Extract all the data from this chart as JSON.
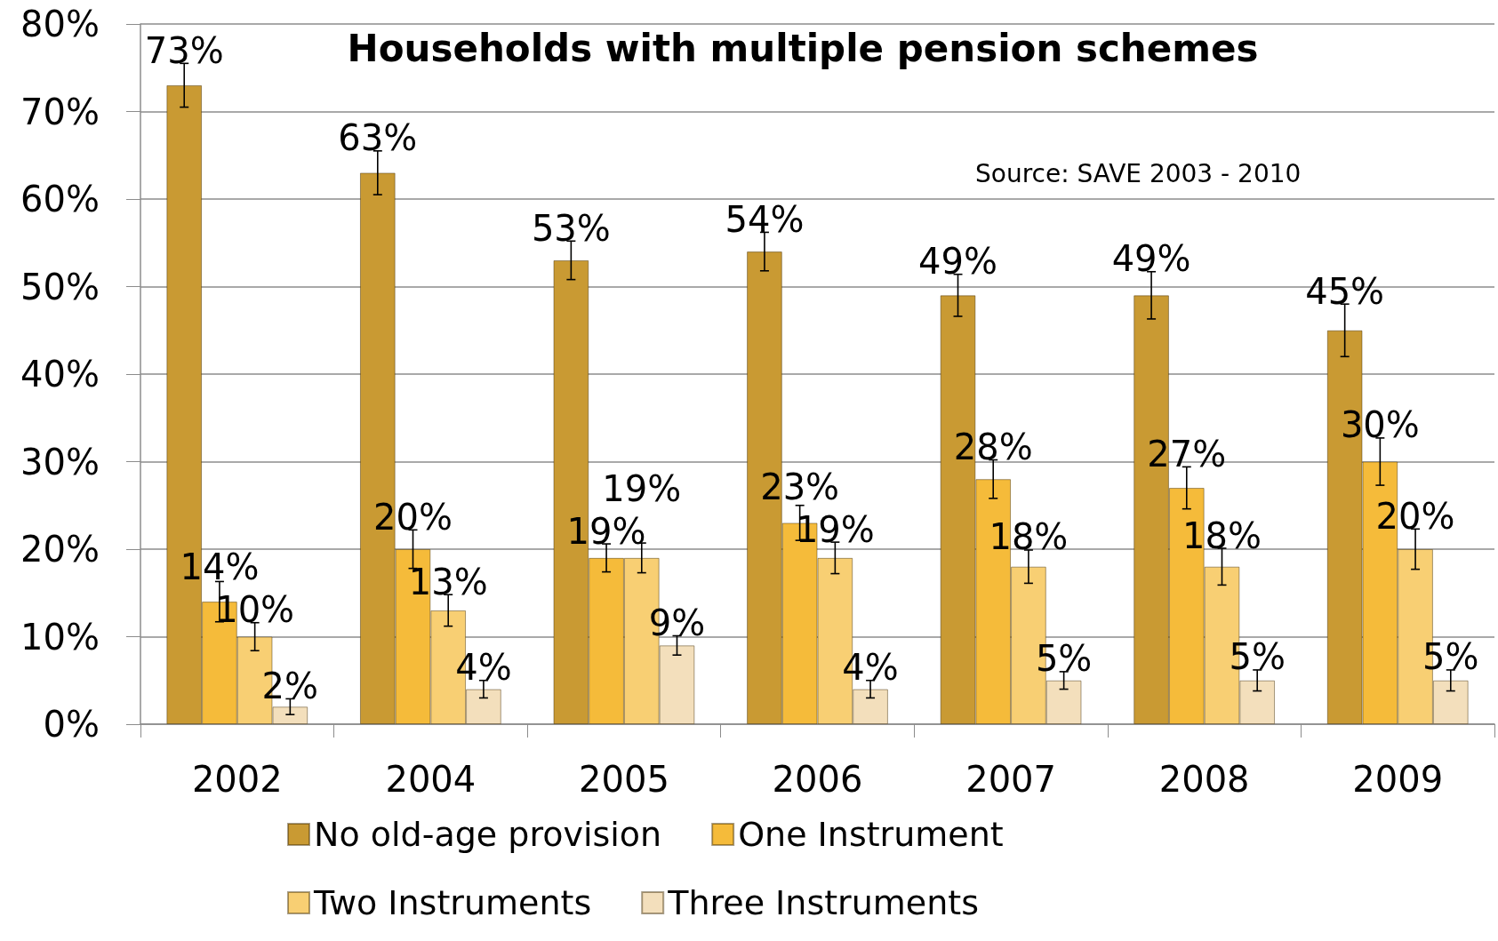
{
  "chart_data": {
    "type": "bar",
    "title": "Households with multiple pension schemes",
    "annotations": [
      "Source: SAVE 2003 - 2010"
    ],
    "categories": [
      "2002",
      "2004",
      "2005",
      "2006",
      "2007",
      "2008",
      "2009"
    ],
    "series": [
      {
        "name": "No old-age provision",
        "color": "#c99a33",
        "values": [
          73,
          63,
          53,
          54,
          49,
          49,
          45
        ],
        "value_labels": [
          "73%",
          "63%",
          "53%",
          "54%",
          "49%",
          "49%",
          "45%"
        ],
        "errors": [
          2.5,
          2.5,
          2.2,
          2.2,
          2.4,
          2.7,
          3.0
        ]
      },
      {
        "name": "One Instrument",
        "color": "#f5bb3a",
        "values": [
          14,
          20,
          19,
          23,
          28,
          27,
          30
        ],
        "value_labels": [
          "14%",
          "20%",
          "19%",
          "23%",
          "28%",
          "27%",
          "30%"
        ],
        "errors": [
          2.3,
          2.2,
          1.6,
          2.0,
          2.2,
          2.4,
          2.7
        ]
      },
      {
        "name": "Two Instruments",
        "color": "#f8cf73",
        "values": [
          10,
          13,
          19,
          19,
          18,
          18,
          20
        ],
        "value_labels": [
          "10%",
          "13%",
          "19%",
          "19%",
          "18%",
          "18%",
          "20%"
        ],
        "errors": [
          1.6,
          1.8,
          1.7,
          1.8,
          1.9,
          2.1,
          2.3
        ]
      },
      {
        "name": "Three Instruments",
        "color": "#f3dfbc",
        "values": [
          2,
          4,
          9,
          4,
          5,
          5,
          5
        ],
        "value_labels": [
          "2%",
          "4%",
          "9%",
          "4%",
          "5%",
          "5%",
          "5%"
        ],
        "errors": [
          0.9,
          1.0,
          1.1,
          1.0,
          1.0,
          1.2,
          1.2
        ]
      }
    ],
    "ylim": [
      0,
      80
    ],
    "yticks": [
      {
        "value": 0,
        "label": "0%"
      },
      {
        "value": 10,
        "label": "10%"
      },
      {
        "value": 20,
        "label": "20%"
      },
      {
        "value": 30,
        "label": "30%"
      },
      {
        "value": 40,
        "label": "40%"
      },
      {
        "value": 50,
        "label": "50%"
      },
      {
        "value": 60,
        "label": "60%"
      },
      {
        "value": 70,
        "label": "70%"
      },
      {
        "value": 80,
        "label": "80%"
      }
    ],
    "grid": "y",
    "legend": "bottom"
  }
}
